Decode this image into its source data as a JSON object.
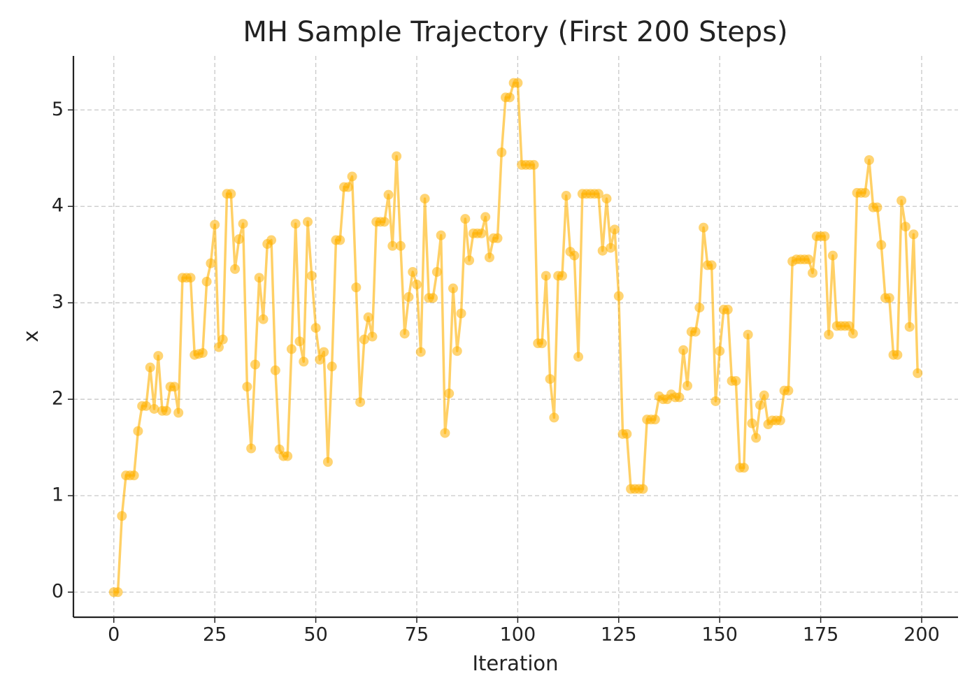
{
  "chart_data": {
    "type": "line",
    "title": "MH Sample Trajectory (First 200 Steps)",
    "x_label": "Iteration",
    "y_label": "x",
    "color": "#ffb000",
    "grid": true,
    "x": [
      0,
      1,
      2,
      3,
      4,
      5,
      6,
      7,
      8,
      9,
      10,
      11,
      12,
      13,
      14,
      15,
      16,
      17,
      18,
      19,
      20,
      21,
      22,
      23,
      24,
      25,
      26,
      27,
      28,
      29,
      30,
      31,
      32,
      33,
      34,
      35,
      36,
      37,
      38,
      39,
      40,
      41,
      42,
      43,
      44,
      45,
      46,
      47,
      48,
      49,
      50,
      51,
      52,
      53,
      54,
      55,
      56,
      57,
      58,
      59,
      60,
      61,
      62,
      63,
      64,
      65,
      66,
      67,
      68,
      69,
      70,
      71,
      72,
      73,
      74,
      75,
      76,
      77,
      78,
      79,
      80,
      81,
      82,
      83,
      84,
      85,
      86,
      87,
      88,
      89,
      90,
      91,
      92,
      93,
      94,
      95,
      96,
      97,
      98,
      99,
      100,
      101,
      102,
      103,
      104,
      105,
      106,
      107,
      108,
      109,
      110,
      111,
      112,
      113,
      114,
      115,
      116,
      117,
      118,
      119,
      120,
      121,
      122,
      123,
      124,
      125,
      126,
      127,
      128,
      129,
      130,
      131,
      132,
      133,
      134,
      135,
      136,
      137,
      138,
      139,
      140,
      141,
      142,
      143,
      144,
      145,
      146,
      147,
      148,
      149,
      150,
      151,
      152,
      153,
      154,
      155,
      156,
      157,
      158,
      159,
      160,
      161,
      162,
      163,
      164,
      165,
      166,
      167,
      168,
      169,
      170,
      171,
      172,
      173,
      174,
      175,
      176,
      177,
      178,
      179,
      180,
      181,
      182,
      183,
      184,
      185,
      186,
      187,
      188,
      189,
      190,
      191,
      192,
      193,
      194,
      195,
      196,
      197,
      198,
      199
    ],
    "values": [
      0,
      0,
      0.79,
      1.21,
      1.21,
      1.21,
      1.67,
      1.93,
      1.93,
      2.33,
      1.9,
      2.45,
      1.88,
      1.88,
      2.13,
      2.13,
      1.86,
      3.26,
      3.26,
      3.26,
      2.46,
      2.47,
      2.48,
      3.22,
      3.41,
      3.81,
      2.54,
      2.62,
      4.13,
      4.13,
      3.35,
      3.66,
      3.82,
      2.13,
      1.49,
      2.36,
      3.26,
      2.83,
      3.61,
      3.65,
      2.3,
      1.48,
      1.41,
      1.41,
      2.52,
      3.82,
      2.6,
      2.39,
      3.84,
      3.28,
      2.74,
      2.41,
      2.49,
      1.35,
      2.34,
      3.65,
      3.65,
      4.2,
      4.2,
      4.31,
      3.16,
      1.97,
      2.62,
      2.85,
      2.65,
      3.84,
      3.84,
      3.84,
      4.12,
      3.59,
      4.52,
      3.59,
      2.68,
      3.06,
      3.32,
      3.19,
      2.49,
      4.08,
      3.05,
      3.05,
      3.32,
      3.7,
      1.65,
      2.06,
      3.15,
      2.5,
      2.89,
      3.87,
      3.44,
      3.72,
      3.72,
      3.72,
      3.89,
      3.47,
      3.67,
      3.67,
      4.56,
      5.13,
      5.13,
      5.28,
      5.28,
      4.43,
      4.43,
      4.43,
      4.43,
      2.58,
      2.58,
      3.28,
      2.21,
      1.81,
      3.28,
      3.28,
      4.11,
      3.53,
      3.49,
      2.44,
      4.13,
      4.13,
      4.13,
      4.13,
      4.13,
      3.54,
      4.08,
      3.57,
      3.76,
      3.07,
      1.64,
      1.64,
      1.07,
      1.07,
      1.07,
      1.07,
      1.79,
      1.79,
      1.79,
      2.03,
      2.0,
      2.0,
      2.05,
      2.02,
      2.02,
      2.51,
      2.14,
      2.7,
      2.7,
      2.95,
      3.78,
      3.39,
      3.39,
      1.98,
      2.5,
      2.93,
      2.93,
      2.19,
      2.19,
      1.29,
      1.29,
      2.67,
      1.75,
      1.6,
      1.94,
      2.04,
      1.74,
      1.78,
      1.78,
      1.78,
      2.09,
      2.09,
      3.43,
      3.45,
      3.45,
      3.45,
      3.45,
      3.31,
      3.69,
      3.69,
      3.69,
      2.67,
      3.49,
      2.76,
      2.76,
      2.76,
      2.76,
      2.68,
      4.14,
      4.14,
      4.14,
      4.48,
      3.99,
      3.99,
      3.6,
      3.05,
      3.05,
      2.46,
      2.46,
      4.06,
      3.79,
      2.75,
      3.71,
      2.27
    ],
    "xlim": [
      -10,
      209
    ],
    "xticks": [
      0,
      25,
      50,
      75,
      100,
      125,
      150,
      175,
      200
    ],
    "ylim": [
      -0.26,
      5.56
    ],
    "yticks": [
      0,
      1,
      2,
      3,
      4,
      5
    ]
  }
}
